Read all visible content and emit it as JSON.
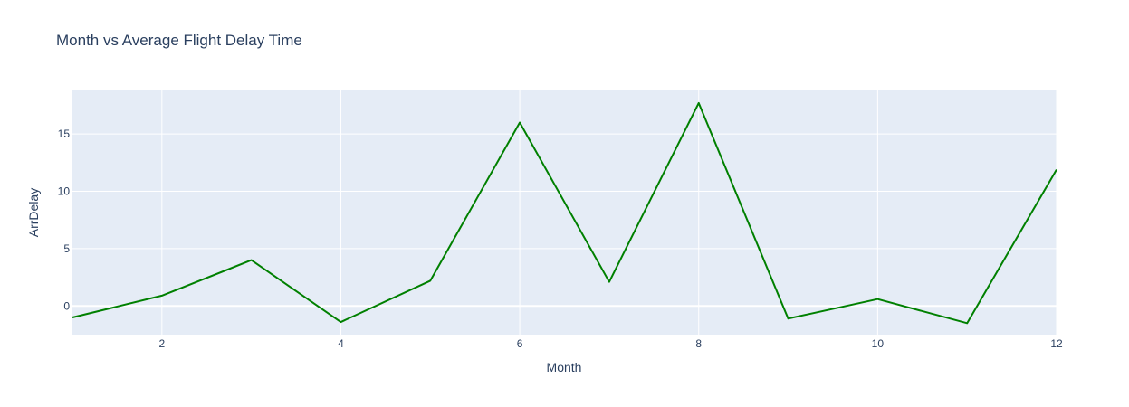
{
  "chart_data": {
    "type": "line",
    "title": "Month vs Average Flight Delay Time",
    "xlabel": "Month",
    "ylabel": "ArrDelay",
    "x": [
      1,
      2,
      3,
      4,
      5,
      6,
      7,
      8,
      9,
      10,
      11,
      12
    ],
    "series": [
      {
        "values": [
          -1.0,
          0.9,
          4.0,
          -1.4,
          2.2,
          16.0,
          2.1,
          17.7,
          -1.1,
          0.6,
          -1.5,
          11.9
        ]
      }
    ],
    "xlim": [
      1,
      12
    ],
    "ylim": [
      -2.5,
      18.8
    ],
    "xticks": [
      2,
      4,
      6,
      8,
      10,
      12
    ],
    "yticks": [
      0,
      5,
      10,
      15
    ],
    "xtick_labels": [
      "2",
      "4",
      "6",
      "8",
      "10",
      "12"
    ],
    "ytick_labels": [
      "0",
      "5",
      "10",
      "15"
    ],
    "grid": true,
    "colors": {
      "line": "#008000",
      "plot_background": "#e5ecf6",
      "grid": "#ffffff",
      "text": "#2a3f5f"
    }
  }
}
